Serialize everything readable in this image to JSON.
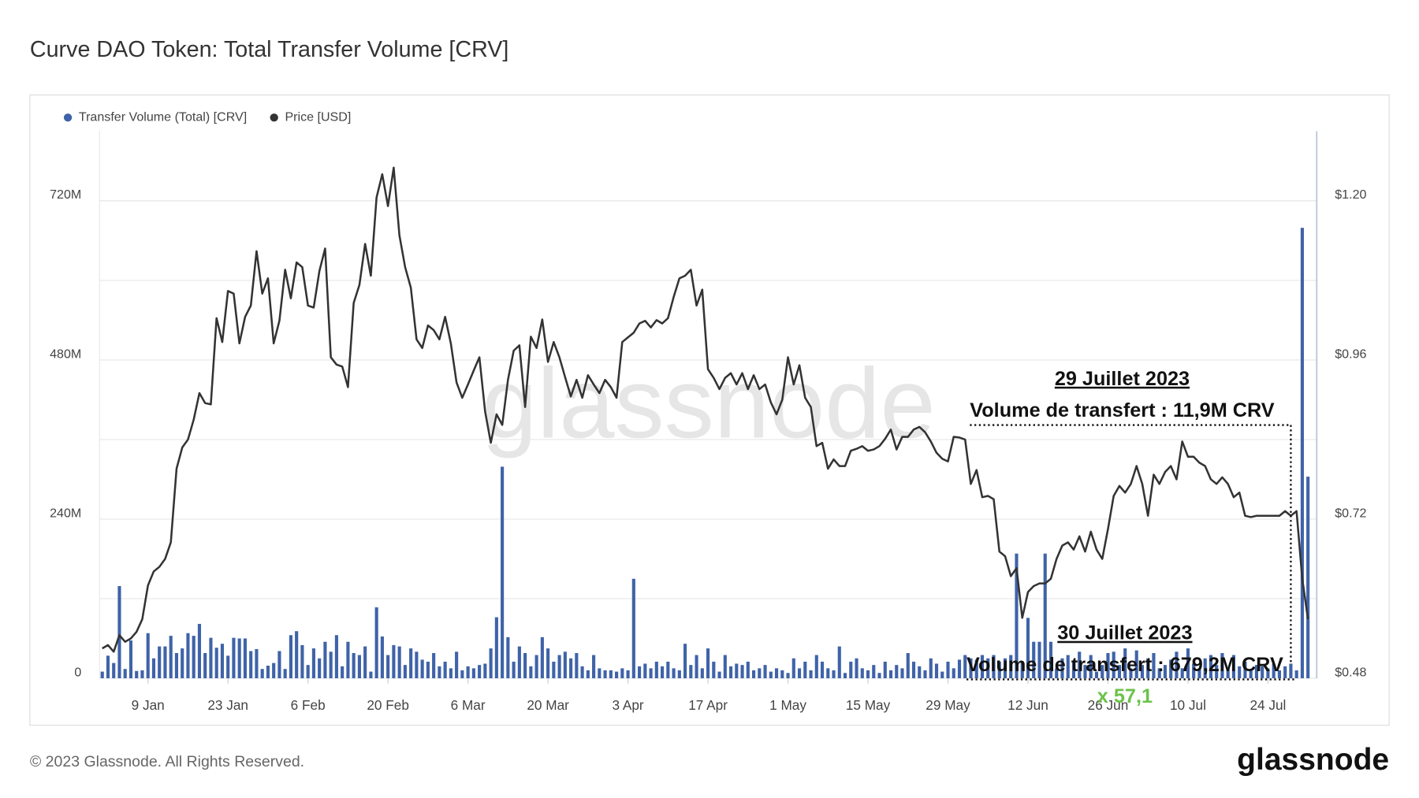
{
  "chart_data": {
    "type": "bar",
    "title": "Curve DAO Token: Total Transfer Volume [CRV]",
    "categories": [
      null,
      null,
      null,
      null,
      null,
      null,
      null,
      null,
      "9 Jan",
      null,
      null,
      null,
      null,
      null,
      null,
      null,
      null,
      null,
      null,
      null,
      null,
      null,
      "23 Jan",
      null,
      null,
      null,
      null,
      null,
      null,
      null,
      null,
      null,
      null,
      null,
      null,
      null,
      "6 Feb",
      null,
      null,
      null,
      null,
      null,
      null,
      null,
      null,
      null,
      null,
      null,
      null,
      null,
      "20 Feb",
      null,
      null,
      null,
      null,
      null,
      null,
      null,
      null,
      null,
      null,
      null,
      null,
      null,
      "6 Mar",
      null,
      null,
      null,
      null,
      null,
      null,
      null,
      null,
      null,
      null,
      null,
      null,
      null,
      "20 Mar",
      null,
      null,
      null,
      null,
      null,
      null,
      null,
      null,
      null,
      null,
      null,
      null,
      null,
      "3 Apr",
      null,
      null,
      null,
      null,
      null,
      null,
      null,
      null,
      null,
      null,
      null,
      null,
      null,
      "17 Apr",
      null,
      null,
      null,
      null,
      null,
      null,
      null,
      null,
      null,
      null,
      null,
      null,
      null,
      "1 May",
      null,
      null,
      null,
      null,
      null,
      null,
      null,
      null,
      null,
      null,
      null,
      null,
      null,
      "15 May",
      null,
      null,
      null,
      null,
      null,
      null,
      null,
      null,
      null,
      null,
      null,
      null,
      null,
      "29 May",
      null,
      null,
      null,
      null,
      null,
      null,
      null,
      null,
      null,
      null,
      null,
      null,
      null,
      "12 Jun",
      null,
      null,
      null,
      null,
      null,
      null,
      null,
      null,
      null,
      null,
      null,
      null,
      null,
      "26 Jun",
      null,
      null,
      null,
      null,
      null,
      null,
      null,
      null,
      null,
      null,
      null,
      null,
      null,
      "10 Jul",
      null,
      null,
      null,
      null,
      null,
      null,
      null,
      null,
      null,
      null,
      null,
      null,
      null,
      "24 Jul",
      null,
      null,
      null,
      null,
      null,
      null,
      null
    ],
    "series": [
      {
        "name": "Transfer Volume (Total) [CRV]",
        "type": "bar",
        "color": "#3f63a8",
        "values": [
          10,
          34,
          23,
          139,
          14,
          57,
          11,
          12,
          68,
          30,
          48,
          48,
          64,
          38,
          45,
          68,
          64,
          82,
          38,
          61,
          46,
          52,
          34,
          61,
          60,
          60,
          41,
          44,
          14,
          19,
          23,
          41,
          14,
          65,
          71,
          50,
          20,
          45,
          30,
          55,
          40,
          65,
          18,
          55,
          38,
          35,
          48,
          10,
          107,
          63,
          35,
          50,
          48,
          20,
          45,
          40,
          28,
          25,
          38,
          18,
          25,
          15,
          40,
          12,
          18,
          15,
          20,
          22,
          45,
          92,
          319,
          62,
          25,
          48,
          38,
          18,
          35,
          62,
          45,
          25,
          35,
          40,
          30,
          38,
          18,
          12,
          35,
          15,
          12,
          12,
          10,
          15,
          12,
          150,
          18,
          22,
          15,
          25,
          18,
          25,
          15,
          12,
          52,
          20,
          35,
          15,
          45,
          25,
          10,
          35,
          18,
          22,
          20,
          25,
          12,
          15,
          20,
          10,
          15,
          12,
          8,
          30,
          15,
          25,
          12,
          35,
          25,
          15,
          12,
          48,
          8,
          25,
          30,
          15,
          12,
          20,
          8,
          25,
          12,
          20,
          15,
          38,
          25,
          18,
          12,
          30,
          22,
          10,
          25,
          15,
          28,
          35,
          30,
          28,
          35,
          30,
          35,
          25,
          30,
          35,
          188,
          25,
          91,
          55,
          55,
          188,
          55,
          15,
          30,
          35,
          25,
          40,
          20,
          35,
          10,
          20,
          38,
          40,
          20,
          45,
          15,
          42,
          20,
          30,
          38,
          15,
          20,
          28,
          40,
          15,
          45,
          22,
          15,
          30,
          35,
          20,
          38,
          15,
          35,
          18,
          25,
          12,
          20,
          18,
          15,
          22,
          12,
          18,
          22,
          11.9,
          679.2,
          304
        ]
      },
      {
        "name": "Price [USD]",
        "type": "line",
        "axis": "y2",
        "color": "#333333",
        "values": [
          0.525,
          0.53,
          0.52,
          0.545,
          0.535,
          0.54,
          0.55,
          0.569,
          0.62,
          0.641,
          0.648,
          0.66,
          0.685,
          0.796,
          0.828,
          0.84,
          0.87,
          0.91,
          0.895,
          0.893,
          1.023,
          0.987,
          1.064,
          1.06,
          0.985,
          1.025,
          1.042,
          1.124,
          1.06,
          1.083,
          0.985,
          1.019,
          1.096,
          1.053,
          1.107,
          1.1,
          1.042,
          1.039,
          1.094,
          1.128,
          0.964,
          0.953,
          0.95,
          0.919,
          1.046,
          1.073,
          1.135,
          1.087,
          1.205,
          1.24,
          1.192,
          1.25,
          1.148,
          1.1,
          1.069,
          0.991,
          0.978,
          1.012,
          1.005,
          0.991,
          1.025,
          0.985,
          0.926,
          0.903,
          0.923,
          0.944,
          0.964,
          0.882,
          0.835,
          0.878,
          0.862,
          0.93,
          0.974,
          0.982,
          0.889,
          0.995,
          0.978,
          1.021,
          0.957,
          0.987,
          0.964,
          0.934,
          0.905,
          0.93,
          0.903,
          0.937,
          0.923,
          0.91,
          0.93,
          0.919,
          0.903,
          0.987,
          0.994,
          1.001,
          1.015,
          1.019,
          1.009,
          1.02,
          1.015,
          1.023,
          1.055,
          1.083,
          1.087,
          1.096,
          1.042,
          1.066,
          0.946,
          0.933,
          0.916,
          0.933,
          0.94,
          0.923,
          0.94,
          0.916,
          0.937,
          0.916,
          0.923,
          0.896,
          0.878,
          0.9,
          0.964,
          0.923,
          0.952,
          0.903,
          0.889,
          0.83,
          0.835,
          0.796,
          0.81,
          0.8,
          0.8,
          0.823,
          0.826,
          0.83,
          0.823,
          0.825,
          0.83,
          0.841,
          0.855,
          0.825,
          0.844,
          0.844,
          0.855,
          0.859,
          0.851,
          0.837,
          0.82,
          0.811,
          0.807,
          0.844,
          0.843,
          0.84,
          0.773,
          0.794,
          0.753,
          0.755,
          0.75,
          0.671,
          0.664,
          0.634,
          0.646,
          0.571,
          0.61,
          0.619,
          0.623,
          0.623,
          0.63,
          0.66,
          0.68,
          0.685,
          0.674,
          0.694,
          0.671,
          0.701,
          0.674,
          0.66,
          0.705,
          0.755,
          0.77,
          0.76,
          0.773,
          0.8,
          0.773,
          0.725,
          0.787,
          0.773,
          0.791,
          0.8,
          0.78,
          0.837,
          0.814,
          0.814,
          0.805,
          0.8,
          0.78,
          0.773,
          0.783,
          0.773,
          0.753,
          0.76,
          0.725,
          0.723,
          0.725,
          0.725,
          0.725,
          0.725,
          0.725,
          0.732,
          0.725,
          0.732,
          0.63,
          0.569
        ]
      }
    ],
    "ylim": [
      0,
      825
    ],
    "yticks": [
      0,
      {
        "value": 240,
        "label": "240M"
      },
      {
        "value": 480,
        "label": "480M"
      },
      {
        "value": 720,
        "label": "720M"
      }
    ],
    "minor_yticks": [
      120,
      360,
      600
    ],
    "y2lim": [
      0.48,
      1.305
    ],
    "y2ticks": [
      {
        "value": 0.48,
        "label": "$0.48"
      },
      {
        "value": 0.72,
        "label": "$0.72"
      },
      {
        "value": 0.96,
        "label": "$0.96"
      },
      {
        "value": 1.2,
        "label": "$1.20"
      }
    ],
    "grid": true,
    "legend": "top-left",
    "annotations": [
      {
        "index": 209,
        "date": "30 Juillet 2023",
        "text": "Volume de transfert : 679,2M CRV",
        "ratio": "x 57,1",
        "ratio_color": "#6cc24a"
      },
      {
        "index": 208,
        "date": "29 Juillet 2023",
        "text": "Volume de transfert : 11,9M CRV"
      }
    ],
    "watermark": "glassnode",
    "copyright": "© 2023 Glassnode. All Rights Reserved.",
    "logo": "glassnode"
  }
}
